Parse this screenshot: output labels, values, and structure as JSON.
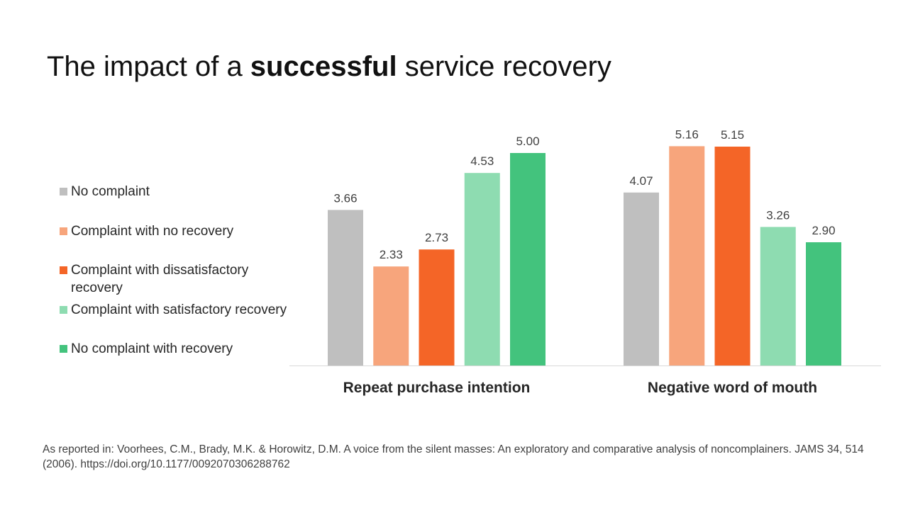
{
  "title": {
    "pre": "The impact of a ",
    "bold": "successful",
    "post": " service recovery"
  },
  "colors": {
    "No complaint": "#bfbfbf",
    "Complaint with no recovery": "#f7a57c",
    "Complaint with dissatisfactory recovery": "#f46527",
    "Complaint with satisfactory recovery": "#8edcb1",
    "No complaint with recovery": "#43c37d"
  },
  "chart_data": {
    "type": "bar",
    "categories": [
      "Repeat purchase intention",
      "Negative word of mouth"
    ],
    "series": [
      {
        "name": "No complaint",
        "values": [
          3.66,
          4.07
        ],
        "labels": [
          "3.66",
          "4.07"
        ]
      },
      {
        "name": "Complaint with no recovery",
        "values": [
          2.33,
          5.16
        ],
        "labels": [
          "2.33",
          "5.16"
        ]
      },
      {
        "name": "Complaint with dissatisfactory recovery",
        "values": [
          2.73,
          5.15
        ],
        "labels": [
          "2.73",
          "5.15"
        ]
      },
      {
        "name": "Complaint with satisfactory recovery",
        "values": [
          4.53,
          3.26
        ],
        "labels": [
          "4.53",
          "3.26"
        ]
      },
      {
        "name": "No complaint with recovery",
        "values": [
          5.0,
          2.9
        ],
        "labels": [
          "5.00",
          "2.90"
        ]
      }
    ],
    "ylim": [
      0,
      5.4
    ],
    "grid": false,
    "legend": "left"
  },
  "footnote": "As reported in: Voorhees, C.M., Brady, M.K. & Horowitz, D.M. A voice from the silent masses: An exploratory and comparative analysis of noncomplainers. JAMS 34, 514 (2006). https://doi.org/10.1177/0092070306288762"
}
